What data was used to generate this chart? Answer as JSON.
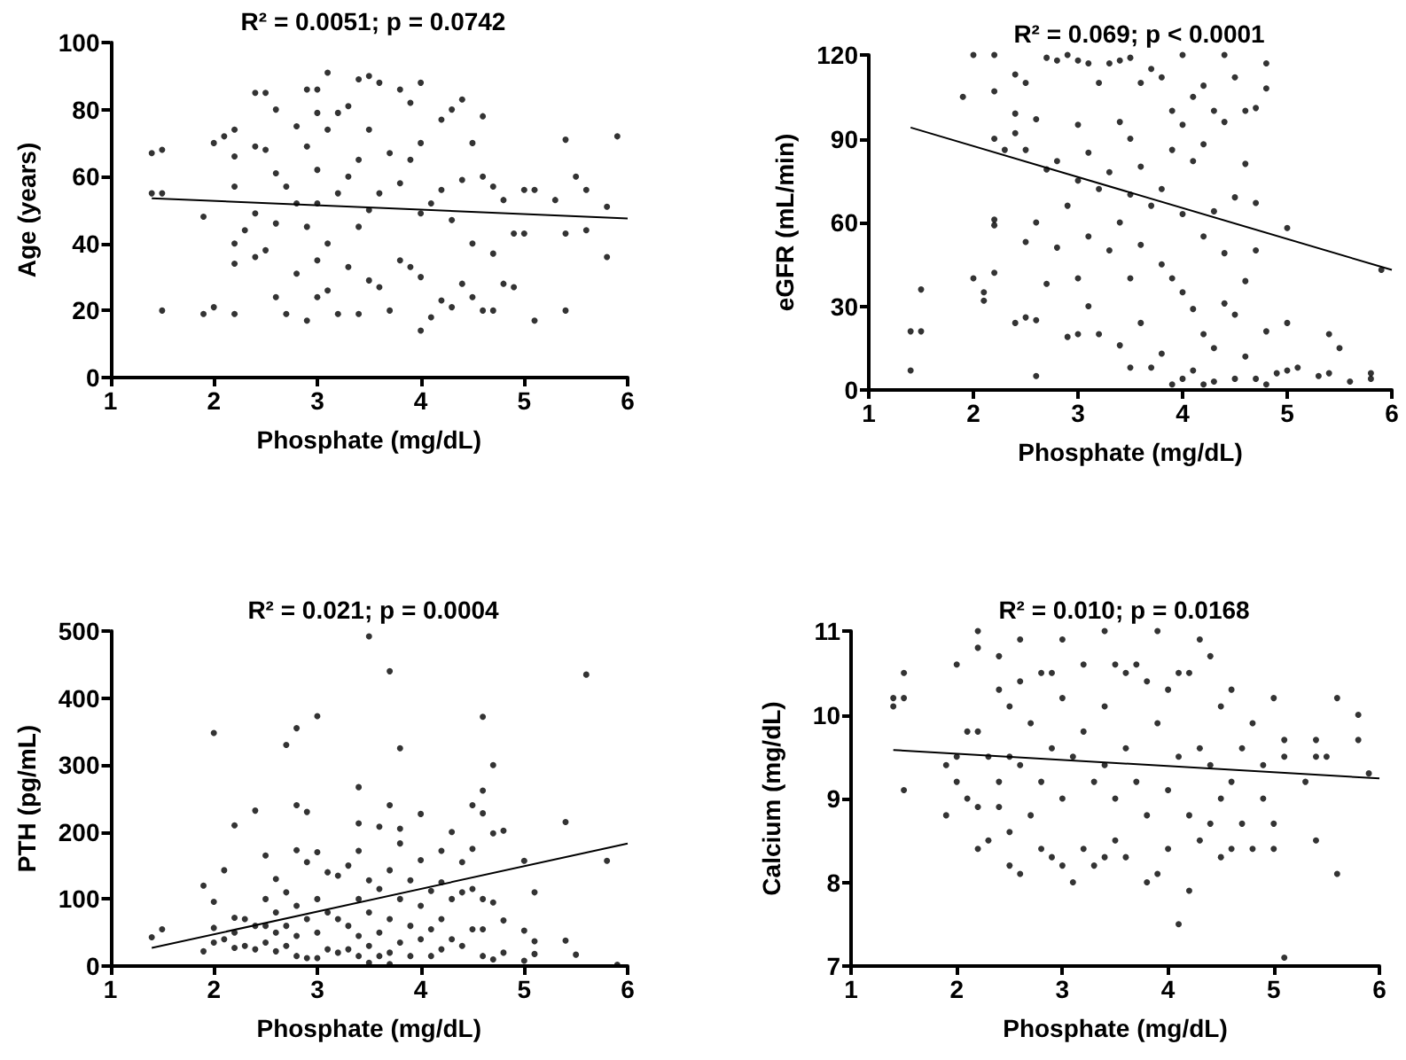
{
  "chart_data": [
    {
      "type": "scatter",
      "title": "R² = 0.0051; p = 0.0742",
      "xlabel": "Phosphate (mg/dL)",
      "ylabel": "Age (years)",
      "xlim": [
        1,
        6
      ],
      "xticks": [
        1,
        2,
        3,
        4,
        5,
        6
      ],
      "ylim": [
        0,
        100
      ],
      "yticks": [
        0,
        20,
        40,
        60,
        80,
        100
      ],
      "grid": false,
      "marker": "circle",
      "series": [
        {
          "color": "#000000",
          "x": [
            1.4,
            1.4,
            1.5,
            1.5,
            1.5,
            1.9,
            1.9,
            2,
            2,
            2.1,
            2.2,
            2.2,
            2.2,
            2.2,
            2.2,
            2.2,
            2.3,
            2.4,
            2.4,
            2.4,
            2.4,
            2.5,
            2.5,
            2.5,
            2.6,
            2.6,
            2.6,
            2.6,
            2.7,
            2.7,
            2.8,
            2.8,
            2.8,
            2.9,
            2.9,
            2.9,
            2.9,
            3,
            3,
            3,
            3,
            3,
            3,
            3.1,
            3.1,
            3.1,
            3.1,
            3.2,
            3.2,
            3.2,
            3.3,
            3.3,
            3.3,
            3.4,
            3.4,
            3.4,
            3.4,
            3.5,
            3.5,
            3.5,
            3.5,
            3.6,
            3.6,
            3.6,
            3.7,
            3.7,
            3.8,
            3.8,
            3.8,
            3.9,
            3.9,
            3.9,
            4,
            4,
            4,
            4,
            4,
            4.1,
            4.1,
            4.2,
            4.2,
            4.2,
            4.3,
            4.3,
            4.3,
            4.4,
            4.4,
            4.4,
            4.5,
            4.5,
            4.5,
            4.6,
            4.6,
            4.6,
            4.7,
            4.7,
            4.7,
            4.8,
            4.8,
            4.9,
            4.9,
            5,
            5,
            5.1,
            5.1,
            5.3,
            5.4,
            5.4,
            5.4,
            5.5,
            5.6,
            5.6,
            5.8,
            5.8,
            5.9
          ],
          "values": [
            67,
            55,
            68,
            55,
            20,
            48,
            19,
            70,
            21,
            72,
            74,
            66,
            57,
            40,
            34,
            19,
            44,
            85,
            69,
            49,
            36,
            85,
            68,
            38,
            80,
            61,
            46,
            24,
            57,
            19,
            75,
            52,
            31,
            86,
            69,
            45,
            17,
            86,
            79,
            62,
            52,
            35,
            24,
            91,
            74,
            40,
            26,
            79,
            55,
            19,
            81,
            60,
            33,
            89,
            65,
            45,
            19,
            90,
            74,
            50,
            29,
            88,
            55,
            27,
            67,
            20,
            86,
            58,
            35,
            82,
            65,
            33,
            88,
            70,
            49,
            30,
            14,
            52,
            18,
            77,
            56,
            23,
            80,
            47,
            21,
            83,
            59,
            28,
            70,
            40,
            24,
            78,
            60,
            20,
            57,
            37,
            20,
            53,
            28,
            43,
            27,
            56,
            43,
            56,
            17,
            53,
            71,
            43,
            20,
            60,
            56,
            44,
            51,
            36,
            72
          ]
        },
        {
          "type": "line",
          "color": "#000000",
          "marker": "none",
          "line_style": "solid",
          "x": [
            1.4,
            6
          ],
          "values": [
            53.5,
            47.5
          ]
        }
      ]
    },
    {
      "type": "scatter",
      "title": "R² = 0.069; p < 0.0001",
      "xlabel": "Phosphate (mg/dL)",
      "ylabel": "eGFR (mL/min)",
      "xlim": [
        1,
        6
      ],
      "xticks": [
        1,
        2,
        3,
        4,
        5,
        6
      ],
      "ylim": [
        0,
        120
      ],
      "yticks": [
        0,
        30,
        60,
        90,
        120
      ],
      "grid": false,
      "marker": "circle",
      "series": [
        {
          "color": "#000000",
          "x": [
            1.4,
            1.4,
            1.5,
            1.5,
            1.9,
            2,
            2,
            2.1,
            2.1,
            2.2,
            2.2,
            2.2,
            2.2,
            2.2,
            2.2,
            2.3,
            2.4,
            2.4,
            2.4,
            2.4,
            2.5,
            2.5,
            2.5,
            2.5,
            2.6,
            2.6,
            2.6,
            2.6,
            2.7,
            2.7,
            2.7,
            2.8,
            2.8,
            2.8,
            2.9,
            2.9,
            2.9,
            3,
            3,
            3,
            3,
            3,
            3.1,
            3.1,
            3.1,
            3.1,
            3.2,
            3.2,
            3.2,
            3.3,
            3.3,
            3.3,
            3.4,
            3.4,
            3.4,
            3.4,
            3.5,
            3.5,
            3.5,
            3.5,
            3.5,
            3.6,
            3.6,
            3.6,
            3.6,
            3.7,
            3.7,
            3.7,
            3.8,
            3.8,
            3.8,
            3.8,
            3.9,
            3.9,
            3.9,
            3.9,
            4,
            4,
            4,
            4,
            4,
            4.1,
            4.1,
            4.1,
            4.1,
            4.2,
            4.2,
            4.2,
            4.2,
            4.2,
            4.3,
            4.3,
            4.3,
            4.3,
            4.4,
            4.4,
            4.4,
            4.4,
            4.5,
            4.5,
            4.5,
            4.5,
            4.6,
            4.6,
            4.6,
            4.6,
            4.7,
            4.7,
            4.7,
            4.7,
            4.8,
            4.8,
            4.8,
            4.8,
            4.9,
            5,
            5,
            5,
            5.1,
            5.3,
            5.4,
            5.4,
            5.5,
            5.6,
            5.8,
            5.8,
            5.9
          ],
          "values": [
            21,
            7,
            36,
            21,
            105,
            120,
            40,
            35,
            32,
            120,
            107,
            90,
            61,
            59,
            42,
            86,
            113,
            99,
            92,
            24,
            110,
            86,
            53,
            26,
            97,
            60,
            25,
            5,
            119,
            79,
            38,
            118,
            82,
            51,
            120,
            66,
            19,
            118,
            95,
            75,
            40,
            20,
            117,
            85,
            55,
            30,
            110,
            72,
            20,
            117,
            78,
            50,
            118,
            96,
            60,
            16,
            119,
            90,
            70,
            40,
            8,
            110,
            80,
            52,
            24,
            115,
            66,
            8,
            112,
            72,
            45,
            13,
            100,
            86,
            40,
            2,
            120,
            95,
            63,
            35,
            4,
            105,
            82,
            29,
            7,
            109,
            88,
            55,
            20,
            2,
            100,
            64,
            15,
            3,
            120,
            96,
            49,
            31,
            112,
            69,
            27,
            4,
            100,
            81,
            39,
            12,
            101,
            67,
            50,
            4,
            117,
            108,
            21,
            2,
            6,
            58,
            24,
            7,
            8,
            5,
            20,
            6,
            15,
            3,
            6,
            4,
            43
          ]
        },
        {
          "type": "line",
          "color": "#000000",
          "marker": "none",
          "line_style": "solid",
          "x": [
            1.4,
            6
          ],
          "values": [
            94,
            43
          ]
        }
      ]
    },
    {
      "type": "scatter",
      "title": "R² = 0.021; p = 0.0004",
      "xlabel": "Phosphate (mg/dL)",
      "ylabel": "PTH (pg/mL)",
      "xlim": [
        1,
        6
      ],
      "xticks": [
        1,
        2,
        3,
        4,
        5,
        6
      ],
      "ylim": [
        0,
        500
      ],
      "yticks": [
        0,
        100,
        200,
        300,
        400,
        500
      ],
      "grid": false,
      "marker": "circle",
      "series": [
        {
          "color": "#000000",
          "x": [
            1.4,
            1.5,
            1.9,
            1.9,
            2,
            2,
            2,
            2,
            2.1,
            2.1,
            2.2,
            2.2,
            2.2,
            2.2,
            2.3,
            2.3,
            2.4,
            2.4,
            2.4,
            2.5,
            2.5,
            2.5,
            2.5,
            2.6,
            2.6,
            2.6,
            2.6,
            2.7,
            2.7,
            2.7,
            2.7,
            2.8,
            2.8,
            2.8,
            2.8,
            2.8,
            2.8,
            2.9,
            2.9,
            2.9,
            2.9,
            3,
            3,
            3,
            3,
            3,
            3.1,
            3.1,
            3.1,
            3.2,
            3.2,
            3.2,
            3.3,
            3.3,
            3.3,
            3.4,
            3.4,
            3.4,
            3.4,
            3.4,
            3.4,
            3.5,
            3.5,
            3.5,
            3.5,
            3.5,
            3.6,
            3.6,
            3.6,
            3.6,
            3.7,
            3.7,
            3.7,
            3.7,
            3.7,
            3.7,
            3.8,
            3.8,
            3.8,
            3.8,
            3.8,
            3.9,
            3.9,
            3.9,
            4,
            4,
            4,
            4,
            4.1,
            4.1,
            4.1,
            4.2,
            4.2,
            4.2,
            4.2,
            4.3,
            4.3,
            4.3,
            4.4,
            4.4,
            4.4,
            4.5,
            4.5,
            4.5,
            4.5,
            4.6,
            4.6,
            4.6,
            4.6,
            4.6,
            4.6,
            4.7,
            4.7,
            4.7,
            4.7,
            4.8,
            4.8,
            4.8,
            5,
            5,
            5,
            5.1,
            5.1,
            5.1,
            5.4,
            5.4,
            5.5,
            5.6,
            5.8,
            5.9
          ],
          "values": [
            43,
            55,
            120,
            22,
            348,
            96,
            57,
            35,
            143,
            40,
            210,
            72,
            50,
            27,
            70,
            30,
            232,
            60,
            25,
            165,
            100,
            60,
            35,
            130,
            80,
            50,
            22,
            330,
            110,
            60,
            30,
            355,
            240,
            173,
            90,
            45,
            15,
            230,
            155,
            70,
            12,
            373,
            170,
            100,
            50,
            12,
            140,
            80,
            25,
            135,
            70,
            20,
            150,
            60,
            25,
            267,
            213,
            172,
            100,
            45,
            15,
            492,
            128,
            80,
            30,
            5,
            208,
            115,
            50,
            15,
            440,
            240,
            143,
            70,
            20,
            3,
            325,
            205,
            183,
            100,
            35,
            128,
            60,
            15,
            227,
            158,
            90,
            40,
            112,
            55,
            15,
            172,
            125,
            70,
            25,
            200,
            100,
            40,
            155,
            110,
            30,
            240,
            175,
            115,
            55,
            372,
            262,
            228,
            100,
            55,
            15,
            300,
            198,
            95,
            10,
            202,
            68,
            20,
            157,
            53,
            8,
            110,
            37,
            18,
            215,
            38,
            17,
            435,
            157,
            2
          ]
        },
        {
          "type": "line",
          "color": "#000000",
          "marker": "none",
          "line_style": "solid",
          "x": [
            1.4,
            6
          ],
          "values": [
            27,
            183
          ]
        }
      ]
    },
    {
      "type": "scatter",
      "title": "R² = 0.010; p = 0.0168",
      "xlabel": "Phosphate (mg/dL)",
      "ylabel": "Calcium (mg/dL)",
      "xlim": [
        1,
        6
      ],
      "xticks": [
        1,
        2,
        3,
        4,
        5,
        6
      ],
      "ylim": [
        7,
        11
      ],
      "yticks": [
        7,
        8,
        9,
        10,
        11
      ],
      "grid": false,
      "marker": "circle",
      "series": [
        {
          "color": "#000000",
          "x": [
            1.4,
            1.4,
            1.5,
            1.5,
            1.5,
            1.9,
            1.9,
            2,
            2,
            2,
            2.1,
            2.1,
            2.2,
            2.2,
            2.2,
            2.2,
            2.2,
            2.3,
            2.3,
            2.4,
            2.4,
            2.4,
            2.4,
            2.5,
            2.5,
            2.5,
            2.5,
            2.6,
            2.6,
            2.6,
            2.6,
            2.7,
            2.7,
            2.8,
            2.8,
            2.8,
            2.9,
            2.9,
            2.9,
            3,
            3,
            3,
            3,
            3.1,
            3.1,
            3.2,
            3.2,
            3.2,
            3.3,
            3.3,
            3.4,
            3.4,
            3.4,
            3.4,
            3.5,
            3.5,
            3.5,
            3.6,
            3.6,
            3.6,
            3.7,
            3.7,
            3.8,
            3.8,
            3.8,
            3.9,
            3.9,
            3.9,
            4,
            4,
            4,
            4.1,
            4.1,
            4.1,
            4.2,
            4.2,
            4.2,
            4.3,
            4.3,
            4.3,
            4.4,
            4.4,
            4.4,
            4.5,
            4.5,
            4.5,
            4.6,
            4.6,
            4.6,
            4.7,
            4.7,
            4.8,
            4.8,
            4.9,
            4.9,
            5,
            5,
            5,
            5.1,
            5.1,
            5.1,
            5.3,
            5.4,
            5.4,
            5.4,
            5.5,
            5.6,
            5.6,
            5.8,
            5.8,
            5.9
          ],
          "values": [
            10.2,
            10.1,
            10.5,
            10.2,
            9.1,
            9.4,
            8.8,
            10.6,
            9.5,
            9.2,
            9.0,
            9.8,
            11,
            10.8,
            9.8,
            8.9,
            8.4,
            9.5,
            8.5,
            10.7,
            10.3,
            9.2,
            8.9,
            10.1,
            9.5,
            8.6,
            8.2,
            10.9,
            10.4,
            9.4,
            8.1,
            9.9,
            8.8,
            10.5,
            9.2,
            8.4,
            10.5,
            9.6,
            8.3,
            10.9,
            10.2,
            9.0,
            8.2,
            9.5,
            8.0,
            10.6,
            9.8,
            8.4,
            9.2,
            8.2,
            11,
            10.1,
            9.4,
            8.3,
            10.6,
            9.0,
            8.5,
            10.5,
            9.6,
            8.3,
            10.6,
            9.2,
            10.4,
            8.8,
            8.0,
            11,
            9.9,
            8.1,
            10.3,
            9.1,
            8.4,
            10.5,
            9.5,
            7.5,
            10.5,
            8.8,
            7.9,
            10.9,
            9.6,
            8.5,
            10.7,
            9.4,
            8.7,
            10.1,
            9.0,
            8.3,
            10.3,
            9.2,
            8.4,
            9.6,
            8.7,
            9.9,
            8.4,
            9.4,
            9.0,
            10.2,
            8.7,
            8.4,
            9.7,
            9.5,
            7.1,
            9.2,
            9.7,
            9.5,
            8.5,
            9.5,
            10.2,
            8.1,
            10.0,
            9.7,
            9.3
          ]
        },
        {
          "type": "line",
          "color": "#000000",
          "marker": "none",
          "line_style": "solid",
          "x": [
            1.4,
            6
          ],
          "values": [
            9.58,
            9.24
          ]
        }
      ]
    }
  ]
}
